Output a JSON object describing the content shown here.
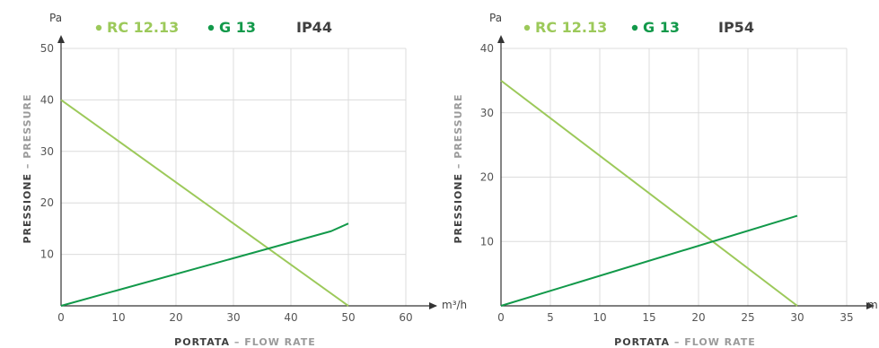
{
  "chart_data": [
    {
      "type": "line",
      "legend": [
        {
          "label": "RC 12.13",
          "color": "#9cc95a"
        },
        {
          "label": "G 13",
          "color": "#12994a"
        },
        {
          "label": "IP44",
          "color": "#3f3f3f"
        }
      ],
      "y_unit": "Pa",
      "x_unit": "m³/h",
      "xlabel_main": "PORTATA",
      "xlabel_sep": " – ",
      "xlabel_alt": "FLOW RATE",
      "ylabel_main": "PRESSIONE",
      "ylabel_sep": " – ",
      "ylabel_alt": "PRESSURE",
      "xlim": [
        0,
        60
      ],
      "ylim": [
        0,
        50
      ],
      "x_ticks": [
        0,
        10,
        20,
        30,
        40,
        50,
        60
      ],
      "y_ticks": [
        10,
        20,
        30,
        40,
        50
      ],
      "grid": true,
      "series": [
        {
          "name": "RC 12.13",
          "color": "#9cc95a",
          "x": [
            0,
            50
          ],
          "y": [
            40,
            0
          ]
        },
        {
          "name": "G 13",
          "color": "#12994a",
          "x": [
            0,
            47,
            50
          ],
          "y": [
            0,
            14.5,
            16
          ]
        }
      ]
    },
    {
      "type": "line",
      "legend": [
        {
          "label": "RC 12.13",
          "color": "#9cc95a"
        },
        {
          "label": "G 13",
          "color": "#12994a"
        },
        {
          "label": "IP54",
          "color": "#3f3f3f"
        }
      ],
      "y_unit": "Pa",
      "x_unit": "m",
      "xlabel_main": "PORTATA",
      "xlabel_sep": " – ",
      "xlabel_alt": "FLOW RATE",
      "ylabel_main": "PRESSIONE",
      "ylabel_sep": " – ",
      "ylabel_alt": "PRESSURE",
      "xlim": [
        0,
        35
      ],
      "ylim": [
        0,
        40
      ],
      "x_ticks": [
        0,
        5,
        10,
        15,
        20,
        25,
        30,
        35
      ],
      "y_ticks": [
        10,
        20,
        30,
        40
      ],
      "grid": true,
      "series": [
        {
          "name": "RC 12.13",
          "color": "#9cc95a",
          "x": [
            0,
            30
          ],
          "y": [
            35,
            0
          ]
        },
        {
          "name": "G 13",
          "color": "#12994a",
          "x": [
            0,
            30
          ],
          "y": [
            0,
            14
          ]
        }
      ]
    }
  ]
}
